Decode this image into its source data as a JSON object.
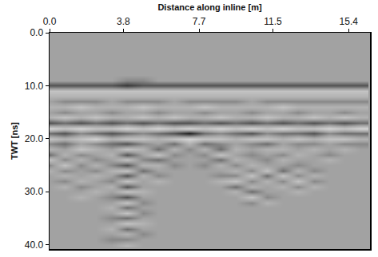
{
  "chart_data": {
    "type": "heatmap",
    "x_label": "Distance along inline [m]",
    "y_label": "TWT [ns]",
    "xlim": [
      0,
      16.5
    ],
    "ylim": [
      40.8,
      0
    ],
    "xticks": [
      {
        "value": 0,
        "label": "0.0"
      },
      3.8,
      7.7,
      11.5,
      15.4
    ],
    "yticks": [
      {
        "value": 0,
        "label": "0.0"
      },
      {
        "value": 10,
        "label": "10.0"
      },
      {
        "value": 20,
        "label": "20.0"
      },
      {
        "value": 30,
        "label": "30.0"
      },
      {
        "value": 40,
        "label": "40.0"
      }
    ],
    "zlim": [
      -5,
      5
    ],
    "x": [
      0,
      0.8,
      1.6,
      2.4,
      3.2,
      4.0,
      4.8,
      5.6,
      6.4,
      7.2,
      8.0,
      8.8,
      9.6,
      10.4,
      11.2,
      12.0,
      12.8,
      13.6,
      14.4,
      15.2,
      16.0
    ],
    "y": [
      0,
      1,
      2,
      3,
      4,
      5,
      6,
      7,
      8,
      9,
      10,
      11,
      12,
      13,
      14,
      15,
      16,
      17,
      18,
      19,
      20,
      21,
      22,
      23,
      24,
      25,
      26,
      27,
      28,
      29,
      30,
      31,
      32,
      33,
      34,
      35,
      36,
      37,
      38,
      39,
      40
    ],
    "z": [
      [
        0,
        0,
        0,
        0,
        0,
        0,
        0,
        0,
        0,
        0,
        0,
        0,
        0,
        0,
        0,
        0,
        0,
        0,
        0,
        0,
        0
      ],
      [
        0,
        0,
        0,
        0,
        0,
        0,
        0,
        0,
        0,
        0,
        0,
        0,
        0,
        0,
        0,
        0,
        0,
        0,
        0,
        0,
        0
      ],
      [
        0,
        0,
        0,
        0,
        0,
        0,
        0,
        0,
        0,
        0,
        0,
        0,
        0,
        0,
        0,
        0,
        0,
        0,
        0,
        0,
        0
      ],
      [
        0,
        0,
        0,
        0,
        0,
        0,
        0,
        0,
        0,
        0,
        0,
        0,
        0,
        0,
        0,
        0,
        0,
        0,
        0,
        0,
        0
      ],
      [
        0,
        0,
        0,
        0,
        0,
        0,
        0,
        0,
        0,
        0,
        0,
        0,
        0,
        0,
        0,
        0,
        0,
        0,
        0,
        0,
        0
      ],
      [
        0,
        0,
        0,
        0,
        0,
        0,
        0,
        0,
        0,
        0,
        0,
        0,
        0,
        0,
        0,
        0,
        0,
        0,
        0,
        0,
        0
      ],
      [
        0,
        0,
        0,
        0,
        0,
        0,
        0,
        0,
        0,
        0,
        0,
        0,
        0,
        0,
        0,
        0,
        0,
        0,
        0,
        0,
        0
      ],
      [
        0,
        0,
        0,
        0,
        0,
        0,
        0,
        0,
        0,
        0,
        0,
        0,
        0,
        0,
        0,
        0,
        0,
        0,
        0,
        0,
        0
      ],
      [
        0,
        0,
        0,
        0,
        0,
        0,
        0,
        0,
        0,
        0,
        0,
        0,
        0,
        0,
        0,
        0,
        0,
        0,
        0,
        0,
        0
      ],
      [
        0,
        0,
        0,
        0,
        0,
        -1,
        -1,
        0,
        0,
        0,
        0,
        0,
        0,
        0,
        0,
        0,
        0,
        0,
        0,
        0,
        0
      ],
      [
        -3,
        -3,
        -3,
        -3,
        -3,
        -4,
        -3,
        -3,
        -3,
        -3,
        -3,
        -3,
        -3,
        -3,
        -3,
        -3,
        -3,
        -3,
        -3,
        -3,
        -3
      ],
      [
        2,
        2,
        2,
        2,
        2,
        2,
        2,
        2,
        2,
        2,
        2,
        2,
        2,
        2,
        2,
        2,
        2,
        2,
        2,
        2,
        2
      ],
      [
        1,
        1,
        1,
        1,
        1,
        1,
        1,
        1,
        1,
        1,
        1,
        1,
        1,
        1,
        1,
        1,
        1,
        1,
        1,
        1,
        1
      ],
      [
        0,
        -1,
        -1,
        -1,
        0,
        -1,
        -1,
        -1,
        0,
        -1,
        -1,
        -1,
        -1,
        0,
        -1,
        -1,
        -1,
        -1,
        -1,
        -1,
        -1
      ],
      [
        1,
        1,
        2,
        1,
        1,
        1,
        2,
        1,
        1,
        1,
        2,
        1,
        1,
        1,
        1,
        2,
        1,
        1,
        1,
        1,
        1
      ],
      [
        0,
        -1,
        0,
        0,
        -1,
        0,
        0,
        -1,
        0,
        0,
        -1,
        0,
        0,
        -1,
        0,
        0,
        -1,
        0,
        0,
        -1,
        0
      ],
      [
        1,
        2,
        1,
        2,
        1,
        1,
        2,
        1,
        2,
        1,
        1,
        2,
        1,
        1,
        2,
        1,
        1,
        2,
        1,
        2,
        1
      ],
      [
        -3,
        -2,
        -3,
        -2,
        -3,
        -2,
        -3,
        -2,
        -3,
        -3,
        -2,
        -3,
        -2,
        -3,
        -2,
        -3,
        -2,
        -3,
        -2,
        -3,
        -2
      ],
      [
        3,
        2,
        3,
        2,
        2,
        3,
        2,
        3,
        2,
        3,
        2,
        3,
        2,
        3,
        2,
        3,
        2,
        2,
        3,
        2,
        3
      ],
      [
        -2,
        -3,
        -1,
        -2,
        -3,
        -2,
        -1,
        -2,
        -3,
        -5,
        -2,
        -1,
        -2,
        -3,
        -1,
        -2,
        -2,
        -3,
        -1,
        -2,
        -2
      ],
      [
        2,
        1,
        2,
        3,
        1,
        2,
        2,
        1,
        2,
        3,
        2,
        2,
        1,
        2,
        2,
        1,
        2,
        1,
        2,
        2,
        1
      ],
      [
        -1,
        -2,
        0,
        -1,
        -2,
        -3,
        -1,
        0,
        -2,
        1,
        -2,
        -1,
        0,
        -1,
        -2,
        0,
        -1,
        -1,
        0,
        -1,
        -1
      ],
      [
        1,
        0,
        2,
        1,
        0,
        2,
        1,
        -2,
        1,
        -1,
        1,
        -2,
        1,
        0,
        1,
        1,
        0,
        1,
        0,
        1,
        0
      ],
      [
        -2,
        1,
        -1,
        0,
        1,
        -3,
        0,
        2,
        -1,
        0,
        -1,
        2,
        0,
        -1,
        0,
        -1,
        1,
        0,
        -1,
        0,
        0
      ],
      [
        2,
        -1,
        1,
        -1,
        0,
        2,
        -1,
        -2,
        0,
        0,
        0,
        -2,
        1,
        0,
        -1,
        1,
        0,
        0,
        1,
        0,
        0
      ],
      [
        -1,
        2,
        -1,
        1,
        -1,
        -3,
        1,
        1,
        -1,
        0,
        -1,
        1,
        -1,
        1,
        0,
        0,
        -1,
        0,
        0,
        0,
        0
      ],
      [
        1,
        -1,
        0,
        -1,
        1,
        2,
        -2,
        0,
        0,
        0,
        0,
        0,
        1,
        -1,
        2,
        -2,
        1,
        -1,
        0,
        0,
        0
      ],
      [
        0,
        1,
        0,
        1,
        0,
        -3,
        1,
        -1,
        0,
        0,
        0,
        -1,
        -1,
        2,
        -2,
        2,
        -1,
        1,
        0,
        0,
        0
      ],
      [
        0,
        -1,
        1,
        0,
        -1,
        2,
        0,
        1,
        0,
        0,
        0,
        1,
        2,
        -1,
        1,
        -1,
        2,
        -1,
        0,
        0,
        0
      ],
      [
        0,
        1,
        -1,
        0,
        1,
        -3,
        0,
        0,
        0,
        0,
        0,
        0,
        -2,
        1,
        0,
        1,
        -1,
        1,
        0,
        0,
        0
      ],
      [
        0,
        0,
        0,
        1,
        0,
        2,
        1,
        0,
        0,
        0,
        0,
        0,
        1,
        -2,
        0,
        0,
        1,
        0,
        0,
        0,
        0
      ],
      [
        0,
        0,
        1,
        0,
        -1,
        -3,
        0,
        0,
        0,
        0,
        0,
        0,
        0,
        2,
        -1,
        0,
        0,
        0,
        0,
        0,
        0
      ],
      [
        0,
        0,
        0,
        0,
        0,
        2,
        -1,
        0,
        0,
        0,
        0,
        0,
        0,
        -1,
        1,
        0,
        0,
        0,
        0,
        0,
        0
      ],
      [
        0,
        0,
        0,
        0,
        1,
        -2,
        0,
        0,
        0,
        0,
        0,
        0,
        0,
        0,
        0,
        0,
        0,
        0,
        0,
        0,
        0
      ],
      [
        0,
        0,
        0,
        0,
        0,
        2,
        -1,
        0,
        0,
        0,
        0,
        0,
        0,
        0,
        0,
        0,
        0,
        0,
        0,
        0,
        0
      ],
      [
        0,
        0,
        0,
        0,
        -1,
        -2,
        0,
        0,
        0,
        0,
        0,
        0,
        0,
        0,
        0,
        0,
        0,
        0,
        0,
        0,
        0
      ],
      [
        0,
        0,
        0,
        0,
        0,
        2,
        1,
        0,
        0,
        0,
        0,
        0,
        0,
        0,
        0,
        0,
        0,
        0,
        0,
        0,
        0
      ],
      [
        0,
        0,
        0,
        0,
        1,
        -2,
        0,
        0,
        0,
        0,
        0,
        0,
        0,
        0,
        0,
        0,
        0,
        0,
        0,
        0,
        0
      ],
      [
        0,
        0,
        0,
        0,
        0,
        1,
        -1,
        0,
        0,
        0,
        0,
        0,
        0,
        0,
        0,
        0,
        0,
        0,
        0,
        0,
        0
      ],
      [
        0,
        0,
        0,
        0,
        -1,
        -1,
        0,
        0,
        0,
        0,
        0,
        0,
        0,
        0,
        0,
        0,
        0,
        0,
        0,
        0,
        0
      ],
      [
        0,
        0,
        0,
        0,
        0,
        1,
        0,
        0,
        0,
        0,
        0,
        0,
        0,
        0,
        0,
        0,
        0,
        0,
        0,
        0,
        0
      ]
    ]
  }
}
